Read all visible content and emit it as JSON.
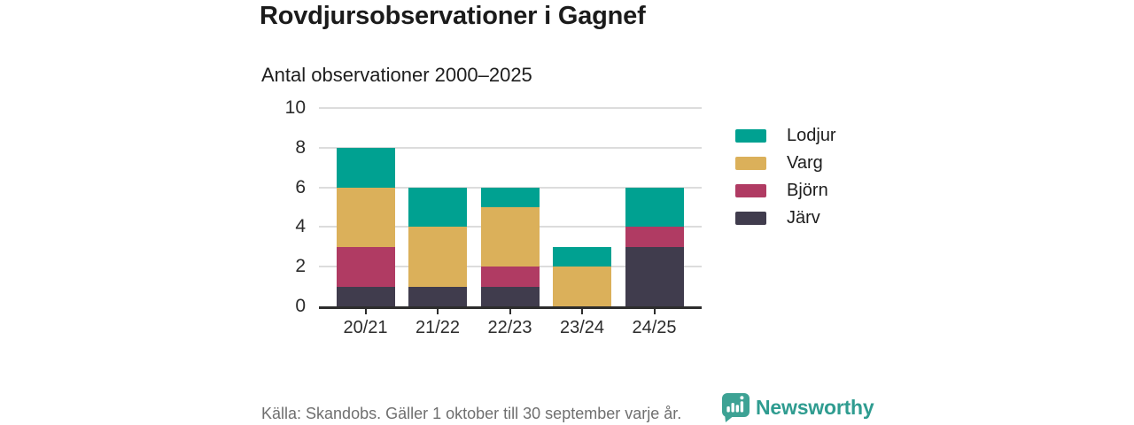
{
  "header": {
    "title": "Rovdjursobservationer i Gagnef"
  },
  "chart_data": {
    "type": "bar",
    "stacked": true,
    "title": "Antal observationer 2000–2025",
    "categories": [
      "20/21",
      "21/22",
      "22/23",
      "23/24",
      "24/25"
    ],
    "series": [
      {
        "name": "Lodjur",
        "color": "#00a191",
        "values": [
          2,
          2,
          1,
          1,
          2
        ]
      },
      {
        "name": "Varg",
        "color": "#dbb05a",
        "values": [
          3,
          3,
          3,
          2,
          0
        ]
      },
      {
        "name": "Björn",
        "color": "#b03b63",
        "values": [
          2,
          0,
          1,
          0,
          1
        ]
      },
      {
        "name": "Järv",
        "color": "#403c4d",
        "values": [
          1,
          1,
          1,
          0,
          3
        ]
      }
    ],
    "stack_order_bottom_to_top": [
      "Järv",
      "Björn",
      "Varg",
      "Lodjur"
    ],
    "totals": [
      8,
      6,
      6,
      3,
      6
    ],
    "ylim": [
      0,
      10
    ],
    "yticks": [
      0,
      2,
      4,
      6,
      8,
      10
    ],
    "xlabel": "",
    "ylabel": "",
    "grid": true,
    "legend_position": "right"
  },
  "footer": {
    "source": "Källa: Skandobs. Gäller 1 oktober till 30 september varje år.",
    "brand": "Newsworthy",
    "brand_color": "#2f9c90",
    "brand_icon": "newsworthy-speech-bubble-bar-chart-icon"
  }
}
